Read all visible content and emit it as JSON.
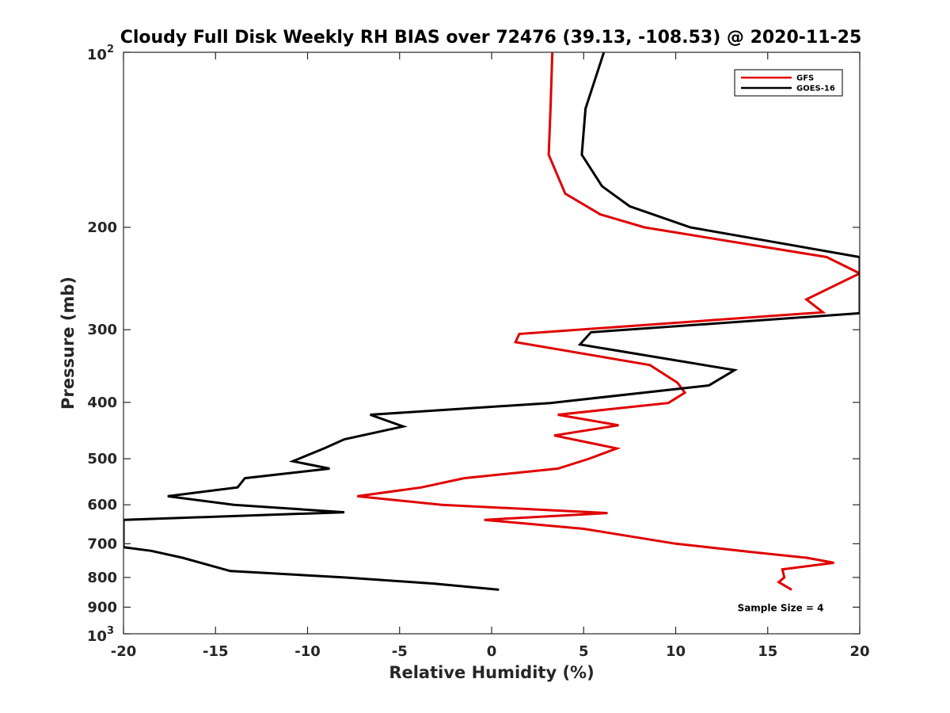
{
  "chart_data": {
    "type": "line",
    "title": "Cloudy Full Disk Weekly RH BIAS over 72476 (39.13, -108.53) @ 2020-11-25",
    "xlabel": "Relative Humidity (%)",
    "ylabel": "Pressure (mb)",
    "xlim": [
      -20,
      20
    ],
    "ylim": [
      100,
      1000
    ],
    "y_scale": "log",
    "y_reversed": true,
    "grid": false,
    "legend_position": "top-right",
    "x_ticks": [
      "-20",
      "-15",
      "-10",
      "-5",
      "0",
      "5",
      "10",
      "15",
      "20"
    ],
    "x_tick_values": [
      -20,
      -15,
      -10,
      -5,
      0,
      5,
      10,
      15,
      20
    ],
    "y_ticks": [
      {
        "value": 100,
        "base": "10",
        "exp": "2"
      },
      {
        "value": 200,
        "label": "200"
      },
      {
        "value": 300,
        "label": "300"
      },
      {
        "value": 400,
        "label": "400"
      },
      {
        "value": 500,
        "label": "500"
      },
      {
        "value": 600,
        "label": "600"
      },
      {
        "value": 700,
        "label": "700"
      },
      {
        "value": 800,
        "label": "800"
      },
      {
        "value": 900,
        "label": "900"
      },
      {
        "value": 1000,
        "base": "10",
        "exp": "3"
      }
    ],
    "series": [
      {
        "name": "GFS",
        "color": "#e00000",
        "points": [
          [
            3.3,
            100
          ],
          [
            3.2,
            125
          ],
          [
            3.1,
            150
          ],
          [
            4.0,
            175
          ],
          [
            5.9,
            190
          ],
          [
            8.3,
            200
          ],
          [
            18.2,
            225
          ],
          [
            20.0,
            240
          ],
          [
            17.1,
            266
          ],
          [
            18.0,
            280
          ],
          [
            1.5,
            305
          ],
          [
            1.3,
            315
          ],
          [
            8.6,
            345
          ],
          [
            10.1,
            370
          ],
          [
            10.5,
            385
          ],
          [
            9.6,
            401
          ],
          [
            3.6,
            420
          ],
          [
            6.9,
            438
          ],
          [
            3.4,
            456
          ],
          [
            6.8,
            480
          ],
          [
            5.3,
            500
          ],
          [
            3.6,
            520
          ],
          [
            -1.5,
            540
          ],
          [
            -3.8,
            560
          ],
          [
            -7.3,
            580
          ],
          [
            -2.7,
            600
          ],
          [
            6.3,
            620
          ],
          [
            -0.4,
            637
          ],
          [
            5.0,
            660
          ],
          [
            10.0,
            700
          ],
          [
            14.4,
            725
          ],
          [
            17.1,
            740
          ],
          [
            18.6,
            755
          ],
          [
            15.8,
            775
          ],
          [
            15.9,
            800
          ],
          [
            15.6,
            815
          ],
          [
            16.3,
            840
          ]
        ]
      },
      {
        "name": "GOES-16",
        "color": "#000000",
        "points": [
          [
            6.1,
            100
          ],
          [
            5.1,
            125
          ],
          [
            4.9,
            150
          ],
          [
            6.0,
            170
          ],
          [
            7.5,
            184
          ],
          [
            10.8,
            200
          ],
          [
            20.0,
            225
          ],
          [
            20.0,
            281
          ],
          [
            5.4,
            303
          ],
          [
            4.8,
            318
          ],
          [
            13.2,
            352
          ],
          [
            11.8,
            374
          ],
          [
            3.2,
            401
          ],
          [
            -6.6,
            420
          ],
          [
            -4.8,
            440
          ],
          [
            -8.0,
            463
          ],
          [
            -9.1,
            480
          ],
          [
            -10.8,
            505
          ],
          [
            -8.8,
            520
          ],
          [
            -13.4,
            540
          ],
          [
            -13.8,
            560
          ],
          [
            -17.6,
            580
          ],
          [
            -14.0,
            600
          ],
          [
            -8.0,
            618
          ],
          [
            -20.0,
            637
          ],
          [
            -20.0,
            710
          ],
          [
            -18.5,
            720
          ],
          [
            -16.8,
            740
          ],
          [
            -14.2,
            780
          ],
          [
            -8.0,
            800
          ],
          [
            -3.1,
            820
          ],
          [
            0.4,
            840
          ]
        ]
      }
    ],
    "annotations": [
      {
        "text": "Sample Size = 4",
        "x": 15.7,
        "y": 900
      }
    ]
  }
}
